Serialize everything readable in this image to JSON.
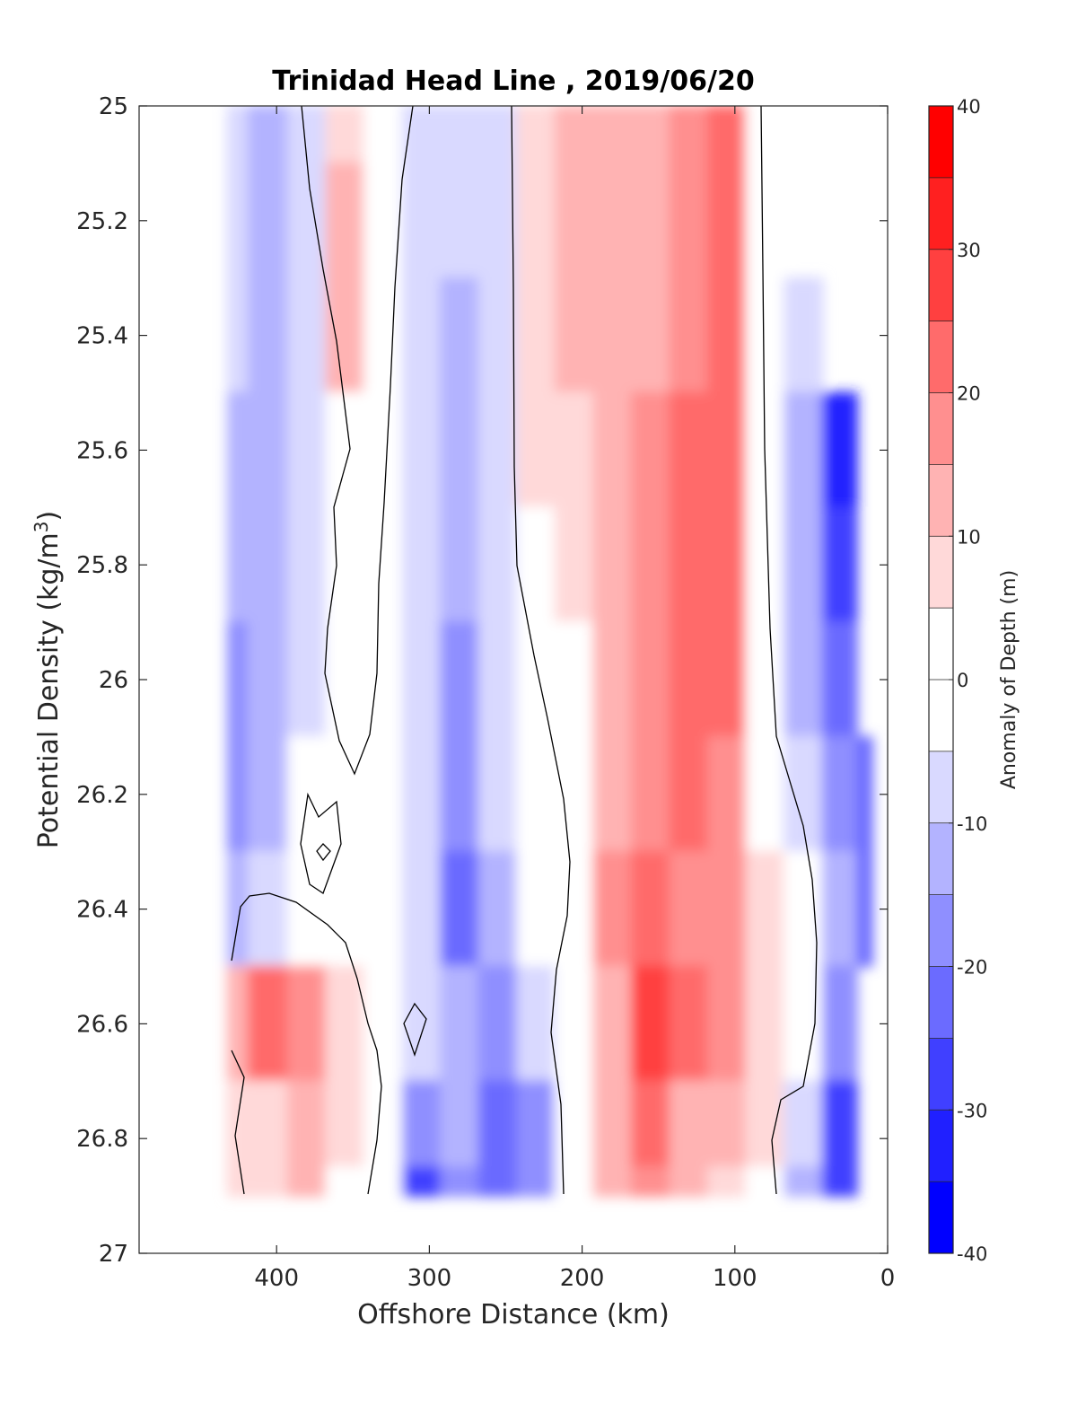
{
  "chart_data": {
    "type": "heatmap",
    "subtype": "filled-contour",
    "title": "Trinidad Head Line , 2019/06/20",
    "xlabel": "Offshore Distance (km)",
    "ylabel": "Potential Density (kg/m3)",
    "ylabel_main": "Potential Density (kg/m",
    "ylabel_sup": "3",
    "ylabel_close": ")",
    "xlim": [
      490,
      0
    ],
    "x_reversed": true,
    "ylim": [
      25,
      27
    ],
    "y_reversed": true,
    "xticks": [
      400,
      300,
      200,
      100,
      0
    ],
    "yticks": [
      25,
      25.2,
      25.4,
      25.6,
      25.8,
      26,
      26.2,
      26.4,
      26.6,
      26.8,
      27
    ],
    "ytick_labels": [
      "25",
      "25.2",
      "25.4",
      "25.6",
      "25.8",
      "26",
      "26.2",
      "26.4",
      "26.6",
      "26.8",
      "27"
    ],
    "data_extent": {
      "x": [
        432,
        10
      ],
      "y": [
        25,
        26.9
      ]
    },
    "colorbar": {
      "label": "Anomaly of Depth (m)",
      "min": -40,
      "max": 40,
      "step": 5,
      "ticks": [
        40,
        30,
        20,
        10,
        0,
        -10,
        -20,
        -30,
        -40
      ],
      "colors": [
        "#0000ff",
        "#2020ff",
        "#4040ff",
        "#6b6bff",
        "#8f8fff",
        "#b3b3ff",
        "#d9d9ff",
        "#ffffff",
        "#ffffff",
        "#ffd9d9",
        "#ffb3b3",
        "#ff8f8f",
        "#ff6b6b",
        "#ff4040",
        "#ff2020",
        "#ff0000"
      ]
    },
    "x_columns_km": [
      432,
      405,
      380,
      355,
      330,
      305,
      280,
      255,
      230,
      205,
      180,
      155,
      130,
      105,
      80,
      55,
      30,
      10
    ],
    "y_rows": [
      25.0,
      25.2,
      25.4,
      25.6,
      25.8,
      26.0,
      26.2,
      26.4,
      26.6,
      26.8,
      26.9
    ],
    "anomaly_m": [
      [
        -6,
        -14,
        -6,
        8,
        2,
        -6,
        -6,
        -6,
        6,
        10,
        12,
        14,
        18,
        24,
        2,
        null,
        null,
        null
      ],
      [
        -6,
        -14,
        -6,
        14,
        2,
        -6,
        -6,
        -6,
        6,
        10,
        12,
        14,
        18,
        22,
        2,
        null,
        null,
        null
      ],
      [
        -8,
        -12,
        -6,
        12,
        2,
        -6,
        -12,
        -6,
        6,
        10,
        12,
        14,
        18,
        22,
        2,
        -8,
        null,
        null
      ],
      [
        -12,
        -12,
        -6,
        2,
        2,
        -8,
        -14,
        -6,
        6,
        8,
        12,
        16,
        20,
        22,
        2,
        -14,
        -32,
        null
      ],
      [
        -14,
        -12,
        -8,
        2,
        2,
        -10,
        -14,
        -8,
        2,
        8,
        14,
        18,
        20,
        22,
        2,
        -14,
        -26,
        null
      ],
      [
        -18,
        -14,
        -8,
        2,
        2,
        -10,
        -16,
        -10,
        2,
        4,
        14,
        18,
        22,
        20,
        2,
        -12,
        -24,
        null
      ],
      [
        -18,
        -12,
        -4,
        2,
        2,
        -8,
        -16,
        -10,
        2,
        4,
        14,
        18,
        20,
        18,
        2,
        -8,
        -18,
        -24
      ],
      [
        -14,
        -6,
        2,
        2,
        -2,
        -6,
        -22,
        -14,
        -4,
        2,
        16,
        20,
        18,
        16,
        6,
        -4,
        -14,
        -24
      ],
      [
        12,
        22,
        16,
        8,
        2,
        -6,
        -14,
        -16,
        -8,
        2,
        14,
        28,
        24,
        16,
        6,
        -2,
        -18,
        null
      ],
      [
        6,
        8,
        12,
        8,
        2,
        -18,
        -14,
        -22,
        -18,
        2,
        14,
        22,
        14,
        10,
        6,
        -10,
        -26,
        null
      ],
      [
        6,
        6,
        10,
        4,
        2,
        -26,
        -18,
        -24,
        -18,
        2,
        14,
        18,
        12,
        8,
        4,
        -12,
        -30,
        null
      ]
    ]
  }
}
